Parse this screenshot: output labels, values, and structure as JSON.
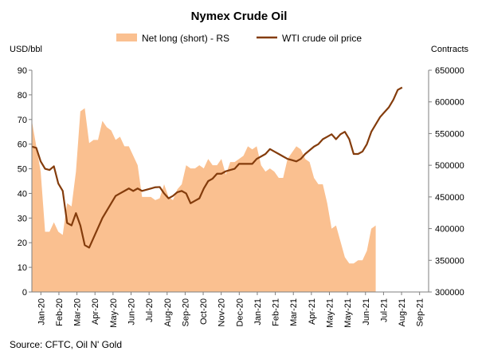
{
  "chart_data": {
    "type": "area",
    "title": "Nymex Crude Oil",
    "source": "Source: CFTC, Oil N' Gold",
    "left_unit": "USD/bbl",
    "right_unit": "Contracts",
    "legend_position": "top",
    "grid": false,
    "categories": [
      "Jan-20",
      "Feb-20",
      "Mar-20",
      "Apr-20",
      "May-20",
      "Jun-20",
      "Jul-20",
      "Aug-20",
      "Sep-20",
      "Oct-20",
      "Nov-20",
      "Dec-20",
      "Jan-21",
      "Feb-21",
      "Mar-21",
      "Apr-21",
      "May-21",
      "May-21",
      "Jun-21",
      "Jul-21",
      "Aug-21",
      "Sep-21"
    ],
    "left_axis": {
      "min": 0,
      "max": 90,
      "step": 10,
      "ticks": [
        "0",
        "10",
        "20",
        "30",
        "40",
        "50",
        "60",
        "70",
        "80",
        "90"
      ]
    },
    "right_axis": {
      "min": 300000,
      "max": 650000,
      "step": 50000,
      "ticks": [
        "300000",
        "350000",
        "400000",
        "450000",
        "500000",
        "550000",
        "600000",
        "650000"
      ]
    },
    "x_range": [
      0,
      90
    ],
    "series": [
      {
        "name": "Net long (short) - RS",
        "axis": "right",
        "color": "#fac090",
        "x": [
          0,
          1,
          2,
          3,
          4,
          5,
          6,
          7,
          8,
          9,
          10,
          11,
          12,
          13,
          14,
          15,
          16,
          17,
          18,
          19,
          20,
          21,
          22,
          23,
          24,
          25,
          26,
          27,
          28,
          29,
          30,
          31,
          32,
          33,
          34,
          35,
          36,
          37,
          38,
          39,
          40,
          41,
          42,
          43,
          44,
          45,
          46,
          47,
          48,
          49,
          50,
          51,
          52,
          53,
          54,
          55,
          56,
          57,
          58,
          59,
          60,
          61,
          62,
          63,
          64,
          65,
          66,
          67,
          68,
          69,
          70,
          71,
          72,
          73,
          74,
          75,
          76,
          77,
          78,
          79,
          80,
          81,
          82,
          83,
          84,
          85,
          86,
          87,
          88,
          89,
          90
        ],
        "values": [
          570000,
          530000,
          490000,
          395000,
          395000,
          410000,
          395000,
          390000,
          440000,
          435000,
          490000,
          585000,
          590000,
          535000,
          540000,
          540000,
          570000,
          560000,
          555000,
          540000,
          545000,
          530000,
          530000,
          515000,
          500000,
          450000,
          450000,
          450000,
          445000,
          448000,
          470000,
          450000,
          445000,
          462000,
          470000,
          500000,
          495000,
          495000,
          500000,
          495000,
          510000,
          500000,
          500000,
          510000,
          485000,
          505000,
          505000,
          510000,
          515000,
          530000,
          525000,
          530000,
          500000,
          490000,
          495000,
          490000,
          480000,
          480000,
          510000,
          520000,
          530000,
          525000,
          510000,
          505000,
          480000,
          470000,
          470000,
          440000,
          400000,
          405000,
          380000,
          355000,
          345000,
          345000,
          350000,
          350000,
          365000,
          400000,
          405000,
          300000,
          300000,
          300000,
          300000,
          300000,
          300000,
          300000,
          300000,
          300000,
          300000,
          300000,
          300000
        ]
      },
      {
        "name": "WTI crude oil price",
        "axis": "left",
        "color": "#843c0c",
        "x": [
          0,
          1,
          2,
          3,
          4,
          5,
          6,
          7,
          8,
          9,
          10,
          11,
          12,
          13,
          14,
          15,
          16,
          17,
          18,
          19,
          20,
          21,
          22,
          23,
          24,
          25,
          26,
          27,
          28,
          29,
          30,
          31,
          32,
          33,
          34,
          35,
          36,
          37,
          38,
          39,
          40,
          41,
          42,
          43,
          44,
          45,
          46,
          47,
          48,
          49,
          50,
          51,
          52,
          53,
          54,
          55,
          56,
          57,
          58,
          59,
          60,
          61,
          62,
          63,
          64,
          65,
          66,
          67,
          68,
          69,
          70,
          71,
          72,
          73,
          74,
          75,
          76,
          77,
          78,
          79,
          80,
          81,
          82,
          83,
          84,
          85,
          86,
          87,
          88,
          89,
          90
        ],
        "values": [
          59,
          58.5,
          53,
          50,
          49.5,
          51,
          44,
          41,
          28,
          27,
          32,
          27,
          19,
          18,
          22,
          26,
          30,
          33,
          36,
          39,
          40,
          41,
          42,
          41,
          42,
          41,
          41.5,
          42,
          42.5,
          42.6,
          40,
          38,
          39,
          40.5,
          41,
          40,
          36,
          37,
          38,
          42,
          45,
          46,
          48,
          48,
          49,
          49.5,
          50,
          52,
          52,
          52,
          52,
          54,
          55,
          56,
          58,
          57,
          56,
          55,
          54,
          53.5,
          53,
          54,
          56,
          57.5,
          59,
          60,
          62,
          63,
          64,
          62,
          64,
          65,
          62,
          56,
          56,
          57,
          60,
          65,
          68,
          71,
          73,
          75,
          78,
          82,
          83,
          0,
          0,
          0,
          0,
          0,
          0
        ]
      }
    ]
  }
}
